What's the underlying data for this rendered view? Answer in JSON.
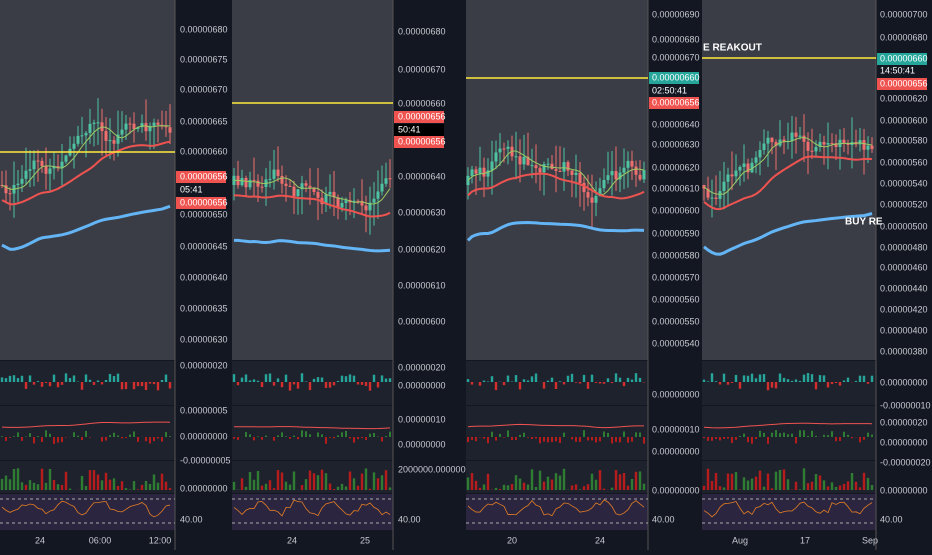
{
  "panels": [
    {
      "price_labels": [
        "0.00000680",
        "0.00000675",
        "0.00000670",
        "0.00000665",
        "0.00000660",
        "0.00000650",
        "0.00000645",
        "0.00000640",
        "0.00000635",
        "0.00000630"
      ],
      "tags": [
        "0.00000656",
        "05:41",
        "0.00000656"
      ],
      "sub_labels": [
        "0.00000020",
        "0.00000005",
        "0.00000000",
        "-0.00000005",
        "0.00000000",
        "40.00"
      ],
      "time_labels": [
        "24",
        "06:00",
        "12:00"
      ]
    },
    {
      "price_labels": [
        "0.00000680",
        "0.00000670",
        "0.00000660",
        "0.00000640",
        "0.00000630",
        "0.00000620",
        "0.00000610",
        "0.00000600"
      ],
      "tags": [
        "0.00000656",
        "50:41",
        "0.00000656"
      ],
      "sub_labels": [
        "0.00000020",
        "0.00000000",
        "0.00000010",
        "0.00000000",
        "2000000.00000000",
        "40.00"
      ],
      "time_labels": [
        "24",
        "25"
      ]
    },
    {
      "price_labels": [
        "0.00000690",
        "0.00000680",
        "0.00000670",
        "0.00000640",
        "0.00000630",
        "0.00000620",
        "0.00000610",
        "0.00000600",
        "0.00000590",
        "0.00000580",
        "0.00000570",
        "0.00000560",
        "0.00000550",
        "0.00000540"
      ],
      "tags": [
        "0.00000660",
        "02:50:41",
        "0.00000656"
      ],
      "sub_labels": [
        "0.00000000",
        "0.00000010",
        "0.00000000",
        "0.00000000",
        "40.00"
      ],
      "time_labels": [
        "20",
        "24"
      ]
    },
    {
      "price_labels": [
        "0.00000700",
        "0.00000680",
        "0.00000620",
        "0.00000600",
        "0.00000580",
        "0.00000560",
        "0.00000540",
        "0.00000520",
        "0.00000500",
        "0.00000480",
        "0.00000460",
        "0.00000440",
        "0.00000420",
        "0.00000400",
        "0.00000380"
      ],
      "tags": [
        "0.00000660",
        "14:50:41",
        "0.00000656"
      ],
      "sub_labels": [
        "0.00000000",
        "-0.00000010",
        "0.00000020",
        "0.00000000",
        "-0.00000020",
        "0.00000000",
        "40.00"
      ],
      "time_labels": [
        "Aug",
        "17",
        "Sep"
      ],
      "annotations": [
        "E REAKOUT",
        "BUY RE"
      ]
    }
  ]
}
